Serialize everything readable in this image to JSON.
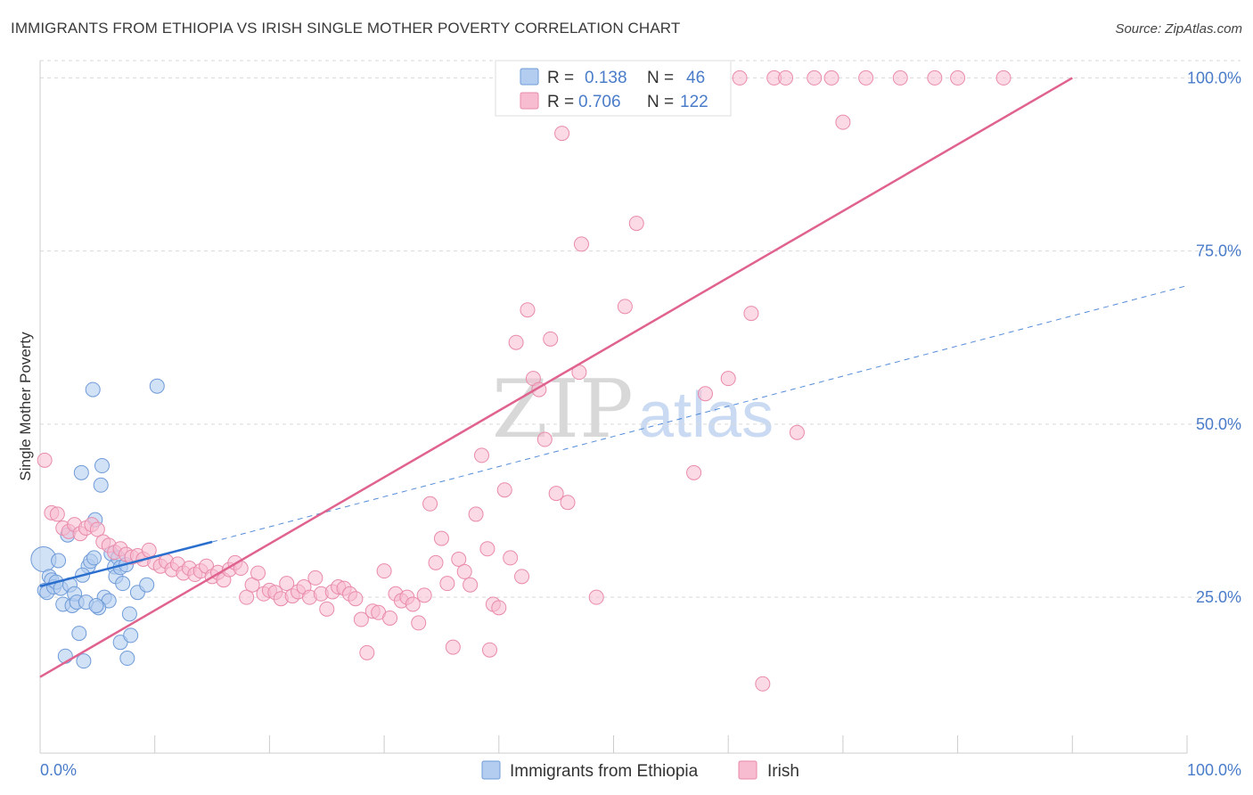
{
  "title": "IMMIGRANTS FROM ETHIOPIA VS IRISH SINGLE MOTHER POVERTY CORRELATION CHART",
  "source": "Source: ZipAtlas.com",
  "watermark": {
    "zip": "ZIP",
    "atlas": "atlas"
  },
  "colors": {
    "ethiopia_fill": "#b3cdf0",
    "ethiopia_stroke": "#6f9bd8",
    "ethiopia_line": "#2b6fce",
    "irish_fill": "#f7bcd0",
    "irish_stroke": "#e98aab",
    "irish_line": "#e0628e",
    "grid": "#d9d9d9",
    "axis_text": "#4a7cc9"
  },
  "legend": {
    "rows": [
      {
        "r_label": "R =",
        "r_value": "0.138",
        "n_label": "N =",
        "n_value": "46"
      },
      {
        "r_label": "R =",
        "r_value": "0.706",
        "n_label": "N =",
        "n_value": "122"
      }
    ]
  },
  "chart_data": {
    "type": "scatter",
    "title": "IMMIGRANTS FROM ETHIOPIA VS IRISH SINGLE MOTHER POVERTY CORRELATION CHART",
    "xlabel": "",
    "ylabel": "Single Mother Poverty",
    "xlim": [
      0,
      100
    ],
    "ylim": [
      2.5,
      102.5
    ],
    "x_tick_labels": [
      "0.0%",
      "100.0%"
    ],
    "y_ticks": [
      25,
      50,
      75,
      100
    ],
    "y_tick_labels": [
      "25.0%",
      "50.0%",
      "75.0%",
      "100.0%"
    ],
    "grid": true,
    "legend_position": "top-center",
    "series": [
      {
        "name": "Immigrants from Ethiopia",
        "r": 0.138,
        "n": 46,
        "trend_solid": [
          [
            0,
            26.6
          ],
          [
            15,
            33.0
          ]
        ],
        "trend_dashed": [
          [
            15,
            33.0
          ],
          [
            100,
            70.0
          ]
        ],
        "points": [
          [
            0.3,
            30.5
          ],
          [
            0.4,
            26.0
          ],
          [
            0.6,
            25.7
          ],
          [
            0.8,
            28.0
          ],
          [
            1.0,
            27.5
          ],
          [
            1.2,
            26.5
          ],
          [
            1.4,
            27.2
          ],
          [
            1.6,
            30.3
          ],
          [
            1.8,
            26.3
          ],
          [
            2.0,
            24.0
          ],
          [
            2.2,
            16.5
          ],
          [
            2.4,
            34.0
          ],
          [
            2.6,
            26.8
          ],
          [
            2.8,
            23.8
          ],
          [
            3.0,
            25.5
          ],
          [
            3.2,
            24.3
          ],
          [
            3.4,
            19.8
          ],
          [
            3.6,
            43.0
          ],
          [
            3.8,
            15.8
          ],
          [
            4.0,
            24.3
          ],
          [
            4.2,
            29.5
          ],
          [
            4.4,
            30.2
          ],
          [
            4.6,
            55.0
          ],
          [
            4.7,
            30.7
          ],
          [
            4.8,
            36.2
          ],
          [
            5.3,
            41.2
          ],
          [
            5.4,
            44.0
          ],
          [
            5.6,
            25.0
          ],
          [
            6.0,
            24.5
          ],
          [
            6.2,
            31.3
          ],
          [
            6.5,
            29.4
          ],
          [
            6.6,
            28.0
          ],
          [
            6.8,
            30.7
          ],
          [
            7.0,
            29.3
          ],
          [
            7.0,
            18.5
          ],
          [
            7.2,
            27.0
          ],
          [
            7.5,
            29.7
          ],
          [
            7.6,
            16.2
          ],
          [
            7.8,
            22.6
          ],
          [
            7.9,
            19.5
          ],
          [
            8.5,
            25.7
          ],
          [
            9.3,
            26.8
          ],
          [
            10.2,
            55.5
          ],
          [
            5.1,
            23.5
          ],
          [
            4.9,
            23.8
          ],
          [
            3.7,
            28.2
          ]
        ]
      },
      {
        "name": "Irish",
        "r": 0.706,
        "n": 122,
        "trend_solid": [
          [
            0,
            13.5
          ],
          [
            90,
            100.0
          ]
        ],
        "points": [
          [
            0.4,
            44.8
          ],
          [
            1.0,
            37.2
          ],
          [
            1.5,
            37.0
          ],
          [
            2.0,
            35.0
          ],
          [
            2.5,
            34.5
          ],
          [
            3.0,
            35.5
          ],
          [
            3.5,
            34.2
          ],
          [
            4.0,
            35.0
          ],
          [
            4.5,
            35.5
          ],
          [
            5.0,
            34.8
          ],
          [
            5.5,
            33.0
          ],
          [
            6.0,
            32.5
          ],
          [
            6.5,
            31.5
          ],
          [
            7.0,
            32.0
          ],
          [
            7.5,
            31.2
          ],
          [
            8.0,
            30.8
          ],
          [
            8.5,
            31.0
          ],
          [
            9.0,
            30.5
          ],
          [
            9.5,
            31.8
          ],
          [
            10.0,
            30.0
          ],
          [
            10.5,
            29.5
          ],
          [
            11.0,
            30.2
          ],
          [
            11.5,
            29.0
          ],
          [
            12.0,
            29.8
          ],
          [
            12.5,
            28.5
          ],
          [
            13.0,
            29.2
          ],
          [
            13.5,
            28.3
          ],
          [
            14.0,
            28.8
          ],
          [
            14.5,
            29.5
          ],
          [
            15.0,
            28.0
          ],
          [
            15.5,
            28.6
          ],
          [
            16.0,
            27.5
          ],
          [
            16.5,
            29.0
          ],
          [
            17.0,
            30.0
          ],
          [
            17.5,
            29.2
          ],
          [
            18.0,
            25.0
          ],
          [
            18.5,
            26.8
          ],
          [
            19.0,
            28.5
          ],
          [
            19.5,
            25.5
          ],
          [
            20.0,
            26.0
          ],
          [
            20.5,
            25.7
          ],
          [
            21.0,
            24.8
          ],
          [
            21.5,
            27.0
          ],
          [
            22.0,
            25.2
          ],
          [
            22.5,
            25.8
          ],
          [
            23.0,
            26.5
          ],
          [
            23.5,
            25.0
          ],
          [
            24.0,
            27.8
          ],
          [
            24.5,
            25.5
          ],
          [
            25.0,
            23.3
          ],
          [
            25.5,
            25.8
          ],
          [
            26.0,
            26.5
          ],
          [
            26.5,
            26.3
          ],
          [
            27.0,
            25.5
          ],
          [
            27.5,
            24.8
          ],
          [
            28.0,
            21.8
          ],
          [
            28.5,
            17.0
          ],
          [
            29.0,
            23.0
          ],
          [
            29.5,
            22.8
          ],
          [
            30.0,
            28.8
          ],
          [
            30.5,
            22.0
          ],
          [
            31.0,
            25.5
          ],
          [
            31.5,
            24.5
          ],
          [
            32.0,
            25.0
          ],
          [
            32.5,
            24.0
          ],
          [
            33.0,
            21.3
          ],
          [
            33.5,
            25.3
          ],
          [
            34.0,
            38.5
          ],
          [
            34.5,
            30.0
          ],
          [
            35.0,
            33.5
          ],
          [
            35.5,
            27.0
          ],
          [
            36.0,
            17.8
          ],
          [
            36.5,
            30.5
          ],
          [
            37.0,
            28.7
          ],
          [
            37.5,
            26.8
          ],
          [
            38.0,
            37.0
          ],
          [
            38.5,
            45.5
          ],
          [
            39.0,
            32.0
          ],
          [
            39.2,
            17.4
          ],
          [
            39.5,
            24.0
          ],
          [
            40.0,
            23.5
          ],
          [
            40.5,
            40.5
          ],
          [
            41.0,
            30.7
          ],
          [
            41.5,
            61.8
          ],
          [
            42.0,
            28.0
          ],
          [
            42.5,
            66.5
          ],
          [
            43.0,
            56.6
          ],
          [
            43.5,
            55.0
          ],
          [
            44.0,
            47.8
          ],
          [
            44.5,
            62.3
          ],
          [
            45.0,
            40.0
          ],
          [
            45.5,
            92.0
          ],
          [
            46.0,
            38.7
          ],
          [
            47.0,
            57.5
          ],
          [
            48.0,
            100.0
          ],
          [
            48.5,
            25.0
          ],
          [
            50.0,
            100.0
          ],
          [
            51.0,
            67.0
          ],
          [
            51.5,
            100.0
          ],
          [
            52.0,
            79.0
          ],
          [
            53.0,
            100.0
          ],
          [
            55.0,
            100.0
          ],
          [
            56.0,
            100.0
          ],
          [
            57.0,
            43.0
          ],
          [
            58.0,
            54.4
          ],
          [
            59.0,
            100.0
          ],
          [
            60.0,
            56.6
          ],
          [
            61.0,
            100.0
          ],
          [
            62.0,
            66.0
          ],
          [
            63.0,
            12.5
          ],
          [
            64.0,
            100.0
          ],
          [
            65.0,
            100.0
          ],
          [
            66.0,
            48.8
          ],
          [
            67.5,
            100.0
          ],
          [
            69.0,
            100.0
          ],
          [
            70.0,
            93.6
          ],
          [
            72.0,
            100.0
          ],
          [
            75.0,
            100.0
          ],
          [
            78.0,
            100.0
          ],
          [
            80.0,
            100.0
          ],
          [
            84.0,
            100.0
          ],
          [
            47.2,
            76.0
          ]
        ]
      }
    ]
  }
}
